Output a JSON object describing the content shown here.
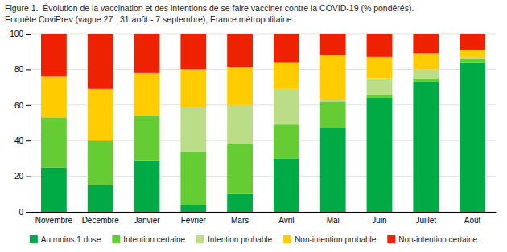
{
  "chart_data": {
    "type": "bar",
    "stacked": true,
    "title": "Figure 1.  Évolution de la vaccination et des intentions de se faire vacciner contre la COVID-19 (% pondérés).",
    "subtitle": "Enquête CoviPrev (vague 27 : 31 août - 7 septembre), France métropolitaine",
    "categories": [
      "Novembre",
      "Décembre",
      "Janvier",
      "Février",
      "Mars",
      "Avril",
      "Mai",
      "Juin",
      "Juillet",
      "Août"
    ],
    "series": [
      {
        "name": "Au moins 1 dose",
        "color": "#00AA44",
        "values": [
          25,
          15,
          29,
          4,
          10,
          30,
          47,
          64,
          73,
          84
        ]
      },
      {
        "name": "Intention certaine",
        "color": "#66CC33",
        "values": [
          28,
          25,
          25,
          30,
          28,
          19,
          15,
          2,
          2,
          2
        ]
      },
      {
        "name": "Intention probable",
        "color": "#BBDD88",
        "values": [
          0,
          0,
          0,
          25,
          22,
          20,
          1,
          9,
          5,
          1
        ]
      },
      {
        "name": "Non-intention probable",
        "color": "#FFCC00",
        "values": [
          23,
          29,
          24,
          21,
          21,
          15,
          25,
          12,
          9,
          4
        ]
      },
      {
        "name": "Non-intention certaine",
        "color": "#EE2200",
        "values": [
          24,
          31,
          22,
          20,
          19,
          16,
          12,
          13,
          11,
          9
        ]
      }
    ],
    "ylim": [
      0,
      100
    ],
    "yticks": [
      0,
      20,
      40,
      60,
      80,
      100
    ],
    "grid": true,
    "legend": "bottom"
  }
}
